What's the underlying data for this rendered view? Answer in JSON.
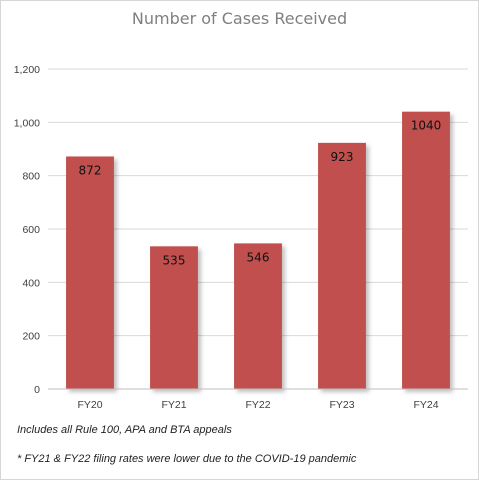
{
  "chart_data": {
    "type": "bar",
    "title": "Number of Cases Received",
    "categories": [
      "FY20",
      "FY21",
      "FY22",
      "FY23",
      "FY24"
    ],
    "values": [
      872,
      535,
      546,
      923,
      1040
    ],
    "data_labels": [
      "872",
      "535",
      "546",
      "923",
      "1040"
    ],
    "ylim": [
      0,
      1200
    ],
    "yticks": [
      0,
      200,
      400,
      600,
      800,
      1000,
      1200
    ],
    "ytick_labels": [
      "0",
      "200",
      "400",
      "600",
      "800",
      "1,000",
      "1,200"
    ],
    "xlabel": "",
    "ylabel": "",
    "grid": "horizontal",
    "legend": "none",
    "bar_color": "#c0504d"
  },
  "notes": {
    "line1": "Includes all Rule 100, APA and BTA appeals",
    "line2": "* FY21 & FY22 filing rates were lower due to the COVID-19 pandemic"
  }
}
